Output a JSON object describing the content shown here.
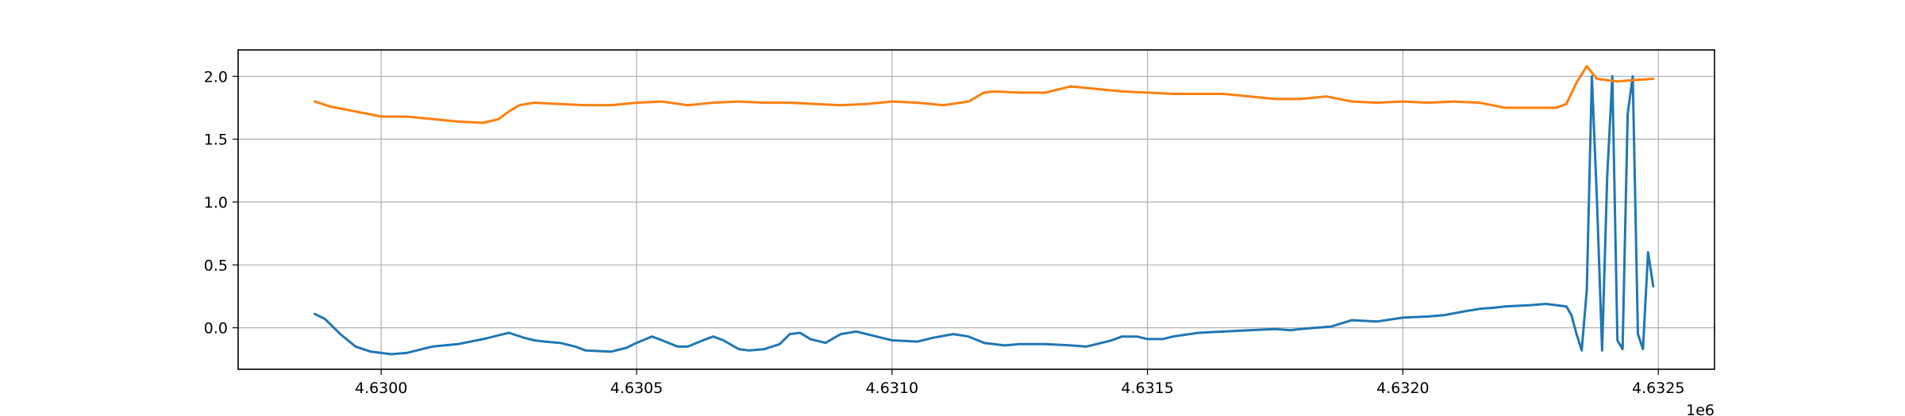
{
  "chart_data": {
    "type": "line",
    "title": "",
    "xlabel": "",
    "ylabel": "",
    "x_offset_label": "1e6",
    "x_tick_values": [
      4.63,
      4.6305,
      4.631,
      4.6315,
      4.632,
      4.6325
    ],
    "x_tick_labels": [
      "4.6300",
      "4.6305",
      "4.6310",
      "4.6315",
      "4.6320",
      "4.6325"
    ],
    "y_tick_values": [
      0.0,
      0.5,
      1.0,
      1.5,
      2.0
    ],
    "y_tick_labels": [
      "0.0",
      "0.5",
      "1.0",
      "1.5",
      "2.0"
    ],
    "xlim": [
      4.62972,
      4.63261
    ],
    "ylim": [
      -0.33,
      2.21
    ],
    "grid": true,
    "legend": "none",
    "series": [
      {
        "color": "#1f77b4",
        "x": [
          4.62987,
          4.62989,
          4.62992,
          4.62995,
          4.62998,
          4.63,
          4.63002,
          4.63005,
          4.63008,
          4.6301,
          4.63015,
          4.6302,
          4.63025,
          4.63028,
          4.6303,
          4.63032,
          4.63035,
          4.63038,
          4.6304,
          4.63045,
          4.63048,
          4.6305,
          4.63053,
          4.63055,
          4.63058,
          4.6306,
          4.63063,
          4.63065,
          4.63067,
          4.6307,
          4.63072,
          4.63075,
          4.63078,
          4.6308,
          4.63082,
          4.63084,
          4.63087,
          4.6309,
          4.63093,
          4.63095,
          4.63098,
          4.631,
          4.63105,
          4.63108,
          4.63112,
          4.63115,
          4.63118,
          4.63122,
          4.63125,
          4.6313,
          4.63135,
          4.63138,
          4.6314,
          4.63143,
          4.63145,
          4.63148,
          4.6315,
          4.63153,
          4.63155,
          4.6316,
          4.63165,
          4.6317,
          4.63175,
          4.63178,
          4.6318,
          4.63183,
          4.63186,
          4.6319,
          4.63195,
          4.632,
          4.63205,
          4.63208,
          4.63212,
          4.63215,
          4.63218,
          4.6322,
          4.63225,
          4.63228,
          4.63232,
          4.63233,
          4.63234,
          4.63235,
          4.63236,
          4.63237,
          4.63238,
          4.63239,
          4.6324,
          4.63241,
          4.63242,
          4.63243,
          4.63244,
          4.63245,
          4.63246,
          4.63247,
          4.63248,
          4.63249
        ],
        "values": [
          0.11,
          0.07,
          -0.05,
          -0.15,
          -0.19,
          -0.2,
          -0.21,
          -0.2,
          -0.17,
          -0.15,
          -0.13,
          -0.09,
          -0.04,
          -0.08,
          -0.1,
          -0.11,
          -0.12,
          -0.15,
          -0.18,
          -0.19,
          -0.16,
          -0.12,
          -0.07,
          -0.1,
          -0.15,
          -0.15,
          -0.1,
          -0.07,
          -0.1,
          -0.17,
          -0.18,
          -0.17,
          -0.13,
          -0.05,
          -0.04,
          -0.09,
          -0.12,
          -0.05,
          -0.03,
          -0.05,
          -0.08,
          -0.1,
          -0.11,
          -0.08,
          -0.05,
          -0.07,
          -0.12,
          -0.14,
          -0.13,
          -0.13,
          -0.14,
          -0.15,
          -0.13,
          -0.1,
          -0.07,
          -0.07,
          -0.09,
          -0.09,
          -0.07,
          -0.04,
          -0.03,
          -0.02,
          -0.01,
          -0.02,
          -0.01,
          0.0,
          0.01,
          0.06,
          0.05,
          0.08,
          0.09,
          0.1,
          0.13,
          0.15,
          0.16,
          0.17,
          0.18,
          0.19,
          0.17,
          0.1,
          -0.05,
          -0.18,
          0.3,
          2.0,
          1.0,
          -0.18,
          1.2,
          2.0,
          -0.1,
          -0.17,
          1.7,
          2.0,
          -0.05,
          -0.17,
          0.6,
          0.33
        ]
      },
      {
        "color": "#ff7f0e",
        "x": [
          4.62987,
          4.6299,
          4.62995,
          4.63,
          4.63005,
          4.6301,
          4.63015,
          4.6302,
          4.63023,
          4.63025,
          4.63027,
          4.6303,
          4.63035,
          4.6304,
          4.63045,
          4.6305,
          4.63055,
          4.6306,
          4.63065,
          4.6307,
          4.63075,
          4.6308,
          4.63085,
          4.6309,
          4.63095,
          4.631,
          4.63105,
          4.6311,
          4.63115,
          4.63118,
          4.6312,
          4.63125,
          4.6313,
          4.63133,
          4.63135,
          4.6314,
          4.63145,
          4.6315,
          4.63155,
          4.6316,
          4.63165,
          4.6317,
          4.63175,
          4.6318,
          4.63185,
          4.6319,
          4.63195,
          4.632,
          4.63205,
          4.6321,
          4.63215,
          4.6322,
          4.63225,
          4.6323,
          4.63232,
          4.63234,
          4.63236,
          4.63238,
          4.6324,
          4.63242,
          4.63245,
          4.63249
        ],
        "values": [
          1.8,
          1.76,
          1.72,
          1.68,
          1.68,
          1.66,
          1.64,
          1.63,
          1.66,
          1.72,
          1.77,
          1.79,
          1.78,
          1.77,
          1.77,
          1.79,
          1.8,
          1.77,
          1.79,
          1.8,
          1.79,
          1.79,
          1.78,
          1.77,
          1.78,
          1.8,
          1.79,
          1.77,
          1.8,
          1.87,
          1.88,
          1.87,
          1.87,
          1.9,
          1.92,
          1.9,
          1.88,
          1.87,
          1.86,
          1.86,
          1.86,
          1.84,
          1.82,
          1.82,
          1.84,
          1.8,
          1.79,
          1.8,
          1.79,
          1.8,
          1.79,
          1.75,
          1.75,
          1.75,
          1.78,
          1.95,
          2.08,
          1.98,
          1.97,
          1.96,
          1.97,
          1.98
        ]
      }
    ]
  }
}
